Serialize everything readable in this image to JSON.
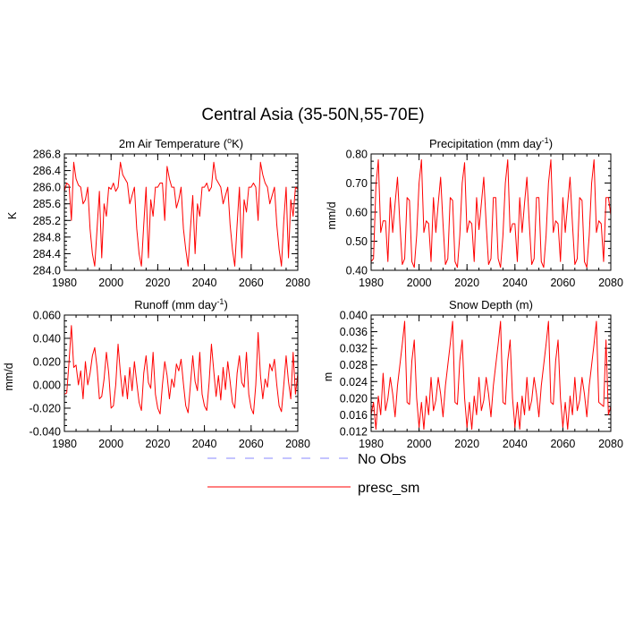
{
  "page": {
    "title": "Central Asia (35-50N,55-70E)"
  },
  "chart_data": [
    {
      "id": "temp",
      "type": "line",
      "title": "2m Air Temperature (",
      "title_sup": "o",
      "title_after": "K)",
      "ylabel": "K",
      "xlim": [
        1980,
        2080
      ],
      "ylim": [
        284.0,
        286.8
      ],
      "xticks": [
        1980,
        2000,
        2020,
        2040,
        2060,
        2080
      ],
      "xtick_labels": [
        "1980",
        "2000",
        "2020",
        "2040",
        "2060",
        "2080"
      ],
      "yticks": [
        284.0,
        284.4,
        284.8,
        285.2,
        285.6,
        286.0,
        286.4,
        286.8
      ],
      "ytick_labels": [
        "284.0",
        "284.4",
        "284.8",
        "285.2",
        "285.6",
        "286.0",
        "286.4",
        "286.8"
      ],
      "series": [
        {
          "name": "presc_sm",
          "color": "#ff0000",
          "x": [
            1980,
            1981,
            1982,
            1983,
            1984,
            1985,
            1986,
            1987,
            1988,
            1989,
            1990,
            1991,
            1992,
            1993,
            1994,
            1995,
            1996,
            1997,
            1998,
            1999,
            2000,
            2001,
            2002,
            2003,
            2004,
            2005,
            2006,
            2007,
            2008,
            2009,
            2010,
            2011,
            2012,
            2013,
            2014,
            2015,
            2016,
            2017,
            2018,
            2019,
            2020,
            2021,
            2022,
            2023,
            2024,
            2025,
            2026,
            2027,
            2028,
            2029,
            2030,
            2031,
            2032,
            2033,
            2034,
            2035,
            2036,
            2037,
            2038,
            2039,
            2040,
            2041,
            2042,
            2043,
            2044,
            2045,
            2046,
            2047,
            2048,
            2049,
            2050,
            2051,
            2052,
            2053,
            2054,
            2055,
            2056,
            2057,
            2058,
            2059,
            2060,
            2061,
            2062,
            2063,
            2064,
            2065,
            2066,
            2067,
            2068,
            2069,
            2070,
            2071,
            2072,
            2073,
            2074,
            2075,
            2076,
            2077,
            2078,
            2079,
            2080
          ],
          "values": [
            285.9,
            286.1,
            286.05,
            285.2,
            286.6,
            286.2,
            286.05,
            286.0,
            285.6,
            285.7,
            286.0,
            285.0,
            284.4,
            284.1,
            285.0,
            285.9,
            284.3,
            285.6,
            285.3,
            286.0,
            285.95,
            286.1,
            285.9,
            286.0,
            286.6,
            286.3,
            286.2,
            286.1,
            285.6,
            285.8,
            286.0,
            285.0,
            284.4,
            284.1,
            285.1,
            286.0,
            284.3,
            285.7,
            285.3,
            286.0,
            286.0,
            286.1,
            286.1,
            285.2,
            286.5,
            286.2,
            286.0,
            286.0,
            285.5,
            285.7,
            286.0,
            285.0,
            284.5,
            284.1,
            285.0,
            285.8,
            284.4,
            285.6,
            285.3,
            286.0,
            286.0,
            286.1,
            285.9,
            286.0,
            286.6,
            286.2,
            286.1,
            286.0,
            285.6,
            285.8,
            286.0,
            285.1,
            284.5,
            284.1,
            285.1,
            286.0,
            284.3,
            285.7,
            285.4,
            286.0,
            286.0,
            286.1,
            286.0,
            285.2,
            286.6,
            286.3,
            286.1,
            286.0,
            285.6,
            285.8,
            286.0,
            285.1,
            284.5,
            284.1,
            285.2,
            286.0,
            284.3,
            285.7,
            285.3,
            286.0,
            285.95
          ]
        }
      ]
    },
    {
      "id": "precip",
      "type": "line",
      "title": "Precipitation (mm day",
      "title_sup": "-1",
      "title_after": ")",
      "ylabel": "mm/d",
      "xlim": [
        1980,
        2080
      ],
      "ylim": [
        0.4,
        0.8
      ],
      "xticks": [
        1980,
        2000,
        2020,
        2040,
        2060,
        2080
      ],
      "xtick_labels": [
        "1980",
        "2000",
        "2020",
        "2040",
        "2060",
        "2080"
      ],
      "yticks": [
        0.4,
        0.5,
        0.6,
        0.7,
        0.8
      ],
      "ytick_labels": [
        "0.40",
        "0.50",
        "0.60",
        "0.70",
        "0.80"
      ],
      "series": [
        {
          "name": "presc_sm",
          "color": "#ff0000",
          "x": [
            1980,
            1981,
            1982,
            1983,
            1984,
            1985,
            1986,
            1987,
            1988,
            1989,
            1990,
            1991,
            1992,
            1993,
            1994,
            1995,
            1996,
            1997,
            1998,
            1999,
            2000,
            2001,
            2002,
            2003,
            2004,
            2005,
            2006,
            2007,
            2008,
            2009,
            2010,
            2011,
            2012,
            2013,
            2014,
            2015,
            2016,
            2017,
            2018,
            2019,
            2020,
            2021,
            2022,
            2023,
            2024,
            2025,
            2026,
            2027,
            2028,
            2029,
            2030,
            2031,
            2032,
            2033,
            2034,
            2035,
            2036,
            2037,
            2038,
            2039,
            2040,
            2041,
            2042,
            2043,
            2044,
            2045,
            2046,
            2047,
            2048,
            2049,
            2050,
            2051,
            2052,
            2053,
            2054,
            2055,
            2056,
            2057,
            2058,
            2059,
            2060,
            2061,
            2062,
            2063,
            2064,
            2065,
            2066,
            2067,
            2068,
            2069,
            2070,
            2071,
            2072,
            2073,
            2074,
            2075,
            2076,
            2077,
            2078,
            2079,
            2080
          ],
          "values": [
            0.43,
            0.44,
            0.69,
            0.78,
            0.53,
            0.57,
            0.57,
            0.43,
            0.65,
            0.53,
            0.63,
            0.72,
            0.56,
            0.42,
            0.44,
            0.65,
            0.64,
            0.43,
            0.41,
            0.52,
            0.7,
            0.78,
            0.53,
            0.57,
            0.56,
            0.43,
            0.65,
            0.53,
            0.63,
            0.72,
            0.56,
            0.42,
            0.44,
            0.65,
            0.64,
            0.43,
            0.41,
            0.52,
            0.7,
            0.77,
            0.53,
            0.57,
            0.56,
            0.43,
            0.65,
            0.54,
            0.63,
            0.72,
            0.56,
            0.42,
            0.44,
            0.65,
            0.65,
            0.44,
            0.41,
            0.52,
            0.7,
            0.78,
            0.53,
            0.56,
            0.56,
            0.43,
            0.65,
            0.53,
            0.63,
            0.72,
            0.56,
            0.42,
            0.44,
            0.65,
            0.65,
            0.43,
            0.41,
            0.52,
            0.7,
            0.78,
            0.53,
            0.57,
            0.56,
            0.43,
            0.65,
            0.53,
            0.63,
            0.72,
            0.56,
            0.42,
            0.44,
            0.65,
            0.64,
            0.43,
            0.41,
            0.52,
            0.7,
            0.78,
            0.53,
            0.57,
            0.56,
            0.43,
            0.65,
            0.65,
            0.59
          ]
        }
      ]
    },
    {
      "id": "runoff",
      "type": "line",
      "title": "Runoff (mm day",
      "title_sup": "-1",
      "title_after": ")",
      "ylabel": "mm/d",
      "xlim": [
        1980,
        2080
      ],
      "ylim": [
        -0.04,
        0.06
      ],
      "xticks": [
        1980,
        2000,
        2020,
        2040,
        2060,
        2080
      ],
      "xtick_labels": [
        "1980",
        "2000",
        "2020",
        "2040",
        "2060",
        "2080"
      ],
      "yticks": [
        -0.04,
        -0.02,
        0.0,
        0.02,
        0.04,
        0.06
      ],
      "ytick_labels": [
        "-0.040",
        "-0.020",
        "0.000",
        "0.020",
        "0.040",
        "0.060"
      ],
      "series": [
        {
          "name": "presc_sm",
          "color": "#ff0000",
          "x": [
            1980,
            1981,
            1982,
            1983,
            1984,
            1985,
            1986,
            1987,
            1988,
            1989,
            1990,
            1991,
            1992,
            1993,
            1994,
            1995,
            1996,
            1997,
            1998,
            1999,
            2000,
            2001,
            2002,
            2003,
            2004,
            2005,
            2006,
            2007,
            2008,
            2009,
            2010,
            2011,
            2012,
            2013,
            2014,
            2015,
            2016,
            2017,
            2018,
            2019,
            2020,
            2021,
            2022,
            2023,
            2024,
            2025,
            2026,
            2027,
            2028,
            2029,
            2030,
            2031,
            2032,
            2033,
            2034,
            2035,
            2036,
            2037,
            2038,
            2039,
            2040,
            2041,
            2042,
            2043,
            2044,
            2045,
            2046,
            2047,
            2048,
            2049,
            2050,
            2051,
            2052,
            2053,
            2054,
            2055,
            2056,
            2057,
            2058,
            2059,
            2060,
            2061,
            2062,
            2063,
            2064,
            2065,
            2066,
            2067,
            2068,
            2069,
            2070,
            2071,
            2072,
            2073,
            2074,
            2075,
            2076,
            2077,
            2078,
            2079,
            2080
          ],
          "values": [
            -0.008,
            -0.007,
            0.02,
            0.051,
            0.015,
            0.017,
            0.0,
            0.012,
            -0.012,
            0.02,
            0.0,
            0.01,
            0.025,
            0.032,
            0.015,
            -0.012,
            -0.01,
            0.005,
            0.028,
            0.01,
            -0.02,
            -0.018,
            0.0,
            0.035,
            0.01,
            -0.01,
            0.008,
            -0.012,
            0.015,
            -0.005,
            0.02,
            0.002,
            -0.015,
            -0.022,
            0.01,
            0.025,
            0.002,
            -0.003,
            0.028,
            -0.008,
            -0.02,
            -0.025,
            0.0,
            0.02,
            0.008,
            -0.012,
            0.005,
            -0.002,
            0.018,
            0.012,
            0.022,
            0.001,
            -0.018,
            -0.024,
            0.0,
            0.025,
            0.003,
            -0.005,
            0.028,
            -0.008,
            -0.018,
            -0.022,
            0.002,
            0.035,
            0.012,
            -0.01,
            0.008,
            -0.013,
            0.015,
            -0.004,
            0.02,
            0.003,
            -0.015,
            -0.02,
            0.01,
            0.025,
            0.002,
            -0.002,
            0.028,
            -0.008,
            -0.02,
            -0.025,
            0.0,
            0.045,
            0.008,
            -0.012,
            0.005,
            -0.002,
            0.018,
            0.012,
            0.022,
            0.0,
            -0.018,
            -0.023,
            0.0,
            0.025,
            0.003,
            -0.012,
            0.028,
            -0.008,
            0.01
          ]
        }
      ]
    },
    {
      "id": "snow",
      "type": "line",
      "title": "Snow Depth (m)",
      "title_sup": "",
      "title_after": "",
      "ylabel": "m",
      "xlim": [
        1980,
        2080
      ],
      "ylim": [
        0.012,
        0.04
      ],
      "xticks": [
        1980,
        2000,
        2020,
        2040,
        2060,
        2080
      ],
      "xtick_labels": [
        "1980",
        "2000",
        "2020",
        "2040",
        "2060",
        "2080"
      ],
      "yticks": [
        0.012,
        0.016,
        0.02,
        0.024,
        0.028,
        0.032,
        0.036,
        0.04
      ],
      "ytick_labels": [
        "0.012",
        "0.016",
        "0.020",
        "0.024",
        "0.028",
        "0.032",
        "0.036",
        "0.040"
      ],
      "series": [
        {
          "name": "presc_sm",
          "color": "#ff0000",
          "x": [
            1980,
            1981,
            1982,
            1983,
            1984,
            1985,
            1986,
            1987,
            1988,
            1989,
            1990,
            1991,
            1992,
            1993,
            1994,
            1995,
            1996,
            1997,
            1998,
            1999,
            2000,
            2001,
            2002,
            2003,
            2004,
            2005,
            2006,
            2007,
            2008,
            2009,
            2010,
            2011,
            2012,
            2013,
            2014,
            2015,
            2016,
            2017,
            2018,
            2019,
            2020,
            2021,
            2022,
            2023,
            2024,
            2025,
            2026,
            2027,
            2028,
            2029,
            2030,
            2031,
            2032,
            2033,
            2034,
            2035,
            2036,
            2037,
            2038,
            2039,
            2040,
            2041,
            2042,
            2043,
            2044,
            2045,
            2046,
            2047,
            2048,
            2049,
            2050,
            2051,
            2052,
            2053,
            2054,
            2055,
            2056,
            2057,
            2058,
            2059,
            2060,
            2061,
            2062,
            2063,
            2064,
            2065,
            2066,
            2067,
            2068,
            2069,
            2070,
            2071,
            2072,
            2073,
            2074,
            2075,
            2076,
            2077,
            2078,
            2079,
            2080
          ],
          "values": [
            0.016,
            0.019,
            0.0125,
            0.0205,
            0.016,
            0.026,
            0.017,
            0.02,
            0.025,
            0.021,
            0.0155,
            0.023,
            0.028,
            0.033,
            0.0385,
            0.019,
            0.0185,
            0.029,
            0.034,
            0.02,
            0.013,
            0.019,
            0.0125,
            0.0205,
            0.016,
            0.025,
            0.017,
            0.0195,
            0.025,
            0.021,
            0.0155,
            0.023,
            0.028,
            0.033,
            0.0385,
            0.019,
            0.0185,
            0.029,
            0.034,
            0.02,
            0.013,
            0.019,
            0.0125,
            0.0205,
            0.016,
            0.025,
            0.017,
            0.0195,
            0.025,
            0.021,
            0.0155,
            0.023,
            0.028,
            0.033,
            0.0385,
            0.019,
            0.0185,
            0.029,
            0.034,
            0.02,
            0.013,
            0.019,
            0.0125,
            0.0205,
            0.016,
            0.025,
            0.017,
            0.0195,
            0.025,
            0.021,
            0.0155,
            0.023,
            0.028,
            0.033,
            0.0385,
            0.019,
            0.0185,
            0.029,
            0.034,
            0.02,
            0.013,
            0.019,
            0.0125,
            0.0205,
            0.016,
            0.025,
            0.017,
            0.0195,
            0.025,
            0.021,
            0.0155,
            0.023,
            0.028,
            0.033,
            0.0385,
            0.019,
            0.0185,
            0.018,
            0.034,
            0.016,
            0.018
          ]
        }
      ]
    }
  ],
  "legend": {
    "items": [
      {
        "label": "No Obs",
        "color": "#8888ff",
        "style": "dashed"
      },
      {
        "label": "presc_sm",
        "color": "#ff0000",
        "style": "solid"
      }
    ]
  }
}
